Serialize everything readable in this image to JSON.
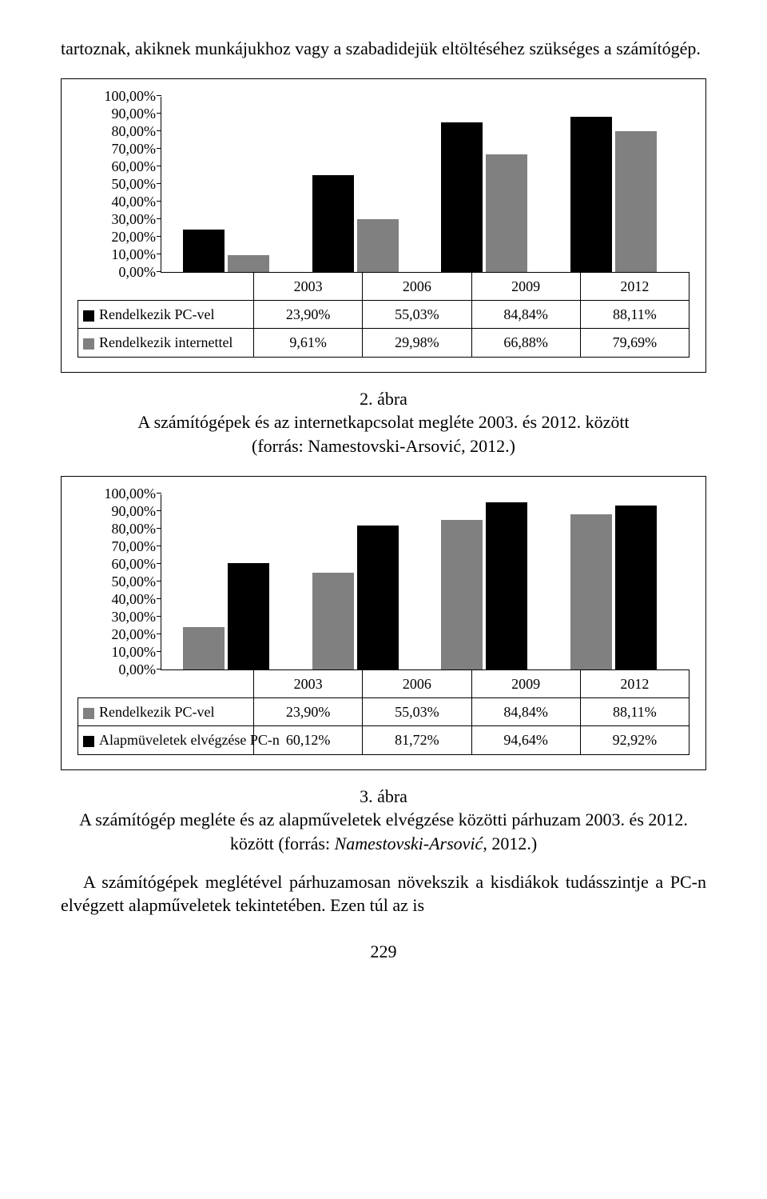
{
  "intro_text": "tartoznak, akiknek munkájukhoz vagy a szabadidejük eltöltéséhez szükséges a számítógép.",
  "page_number": "229",
  "chart1": {
    "type": "bar",
    "y_ticks": [
      "0,00%",
      "10,00%",
      "20,00%",
      "30,00%",
      "40,00%",
      "50,00%",
      "60,00%",
      "70,00%",
      "80,00%",
      "90,00%",
      "100,00%"
    ],
    "ymax": 100,
    "categories": [
      "2003",
      "2006",
      "2009",
      "2012"
    ],
    "series": [
      {
        "name": "Rendelkezik PC-vel",
        "color": "#000000",
        "values_label": [
          "23,90%",
          "55,03%",
          "84,84%",
          "88,11%"
        ],
        "values_num": [
          23.9,
          55.03,
          84.84,
          88.11
        ]
      },
      {
        "name": "Rendelkezik internettel",
        "color": "#808080",
        "values_label": [
          "9,61%",
          "29,98%",
          "66,88%",
          "79,69%"
        ],
        "values_num": [
          9.61,
          29.98,
          66.88,
          79.69
        ]
      }
    ],
    "caption_label": "2. ábra",
    "caption_line1": "A számítógépek és az internetkapcsolat megléte 2003. és 2012. között",
    "caption_line2": "(forrás: Namestovski-Arsović, 2012.)"
  },
  "chart2": {
    "type": "bar",
    "y_ticks": [
      "0,00%",
      "10,00%",
      "20,00%",
      "30,00%",
      "40,00%",
      "50,00%",
      "60,00%",
      "70,00%",
      "80,00%",
      "90,00%",
      "100,00%"
    ],
    "ymax": 100,
    "categories": [
      "2003",
      "2006",
      "2009",
      "2012"
    ],
    "series": [
      {
        "name": "Rendelkezik PC-vel",
        "color": "#808080",
        "values_label": [
          "23,90%",
          "55,03%",
          "84,84%",
          "88,11%"
        ],
        "values_num": [
          23.9,
          55.03,
          84.84,
          88.11
        ]
      },
      {
        "name": "Alapmüveletek elvégzése PC-n",
        "color": "#000000",
        "values_label": [
          "60,12%",
          "81,72%",
          "94,64%",
          "92,92%"
        ],
        "values_num": [
          60.12,
          81.72,
          94.64,
          92.92
        ]
      }
    ],
    "caption_label": "3. ábra",
    "caption_line1": "A számítógép megléte és az alapműveletek elvégzése közötti párhuzam 2003. és 2012. között (forrás: ",
    "caption_line1_italic": "Namestovski-Arsović",
    "caption_line1_tail": ", 2012.)"
  },
  "closing_text": "A számítógépek meglétével párhuzamosan növekszik a kisdiákok tudásszintje a PC-n elvégzett alapműveletek tekintetében. Ezen túl az is"
}
